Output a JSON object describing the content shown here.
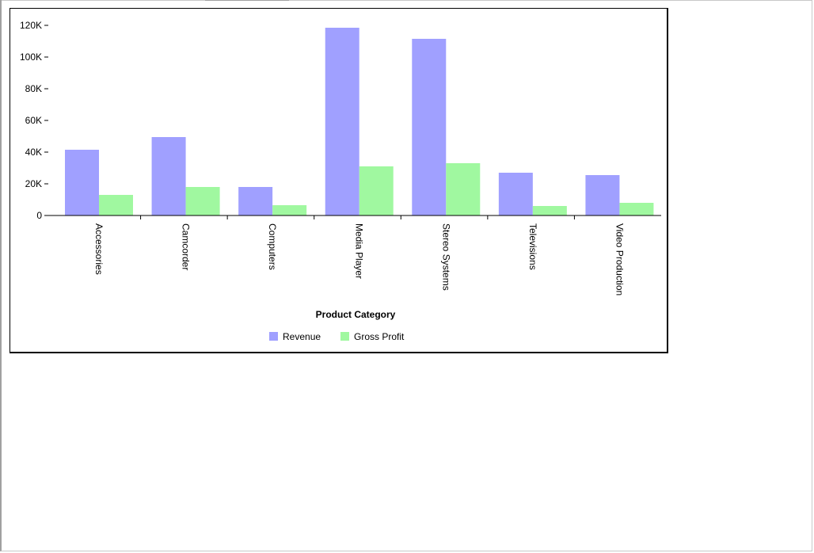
{
  "colors": {
    "revenue": "#a0a0ff",
    "gross_profit": "#a0f8a0",
    "axis": "#000000"
  },
  "chart_data": {
    "type": "bar",
    "xlabel": "Product Category",
    "ylabel": "",
    "ylim": [
      0,
      120000
    ],
    "yticks": [
      0,
      20000,
      40000,
      60000,
      80000,
      100000,
      120000
    ],
    "ytick_labels": [
      "0",
      "20K",
      "40K",
      "60K",
      "80K",
      "100K",
      "120K"
    ],
    "categories": [
      "Accessories",
      "Camcorder",
      "Computers",
      "Media Player",
      "Stereo Systems",
      "Televisions",
      "Video Production"
    ],
    "series": [
      {
        "name": "Revenue",
        "color": "#a0a0ff",
        "values": [
          41500,
          49500,
          18000,
          118500,
          111500,
          27000,
          25500
        ]
      },
      {
        "name": "Gross Profit",
        "color": "#a0f8a0",
        "values": [
          13000,
          18000,
          6500,
          31000,
          33000,
          6000,
          8000
        ]
      }
    ],
    "legend": "bottom-center",
    "grid": false
  }
}
